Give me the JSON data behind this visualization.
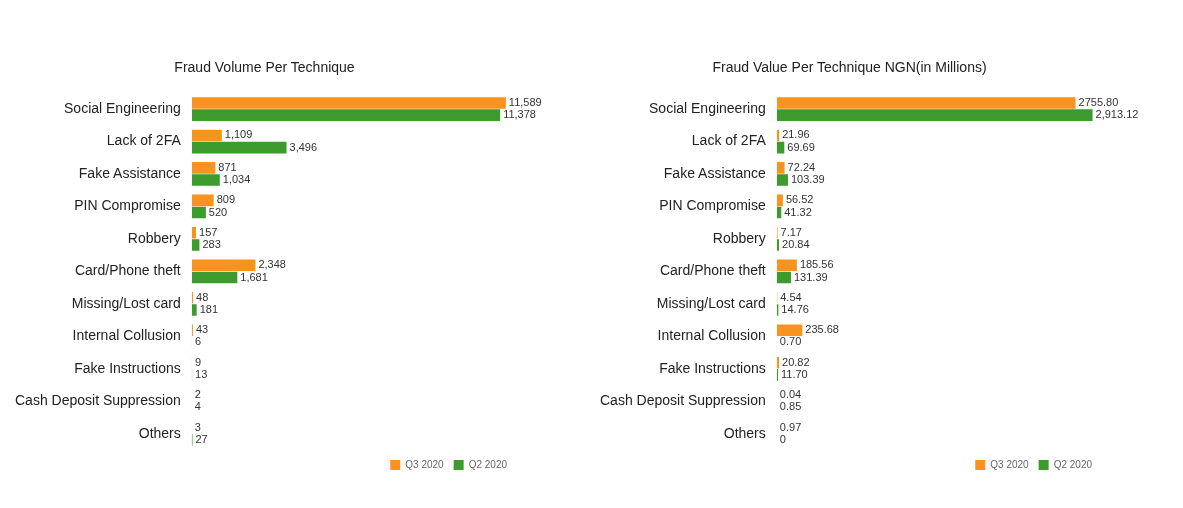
{
  "chart_data": [
    {
      "type": "bar",
      "orientation": "horizontal",
      "title": "Fraud Volume Per Technique",
      "categories": [
        "Social Engineering",
        "Lack of 2FA",
        "Fake Assistance",
        "PIN Compromise",
        "Robbery",
        "Card/Phone theft",
        "Missing/Lost card",
        "Internal Collusion",
        "Fake Instructions",
        "Cash Deposit Suppression",
        "Others"
      ],
      "legend": "bottom right",
      "series": [
        {
          "name": "Q3 2020",
          "color": "#f7931e",
          "values": [
            11589,
            1109,
            871,
            809,
            157,
            2348,
            48,
            43,
            9,
            2,
            3
          ],
          "value_labels": [
            "11,589",
            "1,109",
            "871",
            "809",
            "157",
            "2,348",
            "48",
            "43",
            "9",
            "2",
            "3"
          ]
        },
        {
          "name": "Q2 2020",
          "color": "#3d9a2c",
          "values": [
            11378,
            3496,
            1034,
            520,
            283,
            1681,
            181,
            6,
            13,
            4,
            27
          ],
          "value_labels": [
            "11,378",
            "3,496",
            "1,034",
            "520",
            "283",
            "1,681",
            "181",
            "6",
            "13",
            "4",
            "27"
          ]
        }
      ]
    },
    {
      "type": "bar",
      "orientation": "horizontal",
      "title": "Fraud Value Per Technique NGN(in Millions)",
      "categories": [
        "Social Engineering",
        "Lack of 2FA",
        "Fake Assistance",
        "PIN Compromise",
        "Robbery",
        "Card/Phone theft",
        "Missing/Lost card",
        "Internal Collusion",
        "Fake Instructions",
        "Cash Deposit Suppression",
        "Others"
      ],
      "legend": "bottom right",
      "series": [
        {
          "name": "Q3 2020",
          "color": "#f7931e",
          "values": [
            2755.8,
            21.96,
            72.24,
            56.52,
            7.17,
            185.56,
            4.54,
            235.68,
            20.82,
            0.04,
            0.97
          ],
          "value_labels": [
            "2755.80",
            "21.96",
            "72.24",
            "56.52",
            "7.17",
            "185.56",
            "4.54",
            "235.68",
            "20.82",
            "0.04",
            "0.97"
          ]
        },
        {
          "name": "Q2 2020",
          "color": "#3d9a2c",
          "values": [
            2913.12,
            69.69,
            103.39,
            41.32,
            20.84,
            131.39,
            14.76,
            0.7,
            11.7,
            0.85,
            0
          ],
          "value_labels": [
            "2,913.12",
            "69.69",
            "103.39",
            "41.32",
            "20.84",
            "131.39",
            "14.76",
            "0.70",
            "11.70",
            "0.85",
            "0"
          ]
        }
      ]
    }
  ]
}
